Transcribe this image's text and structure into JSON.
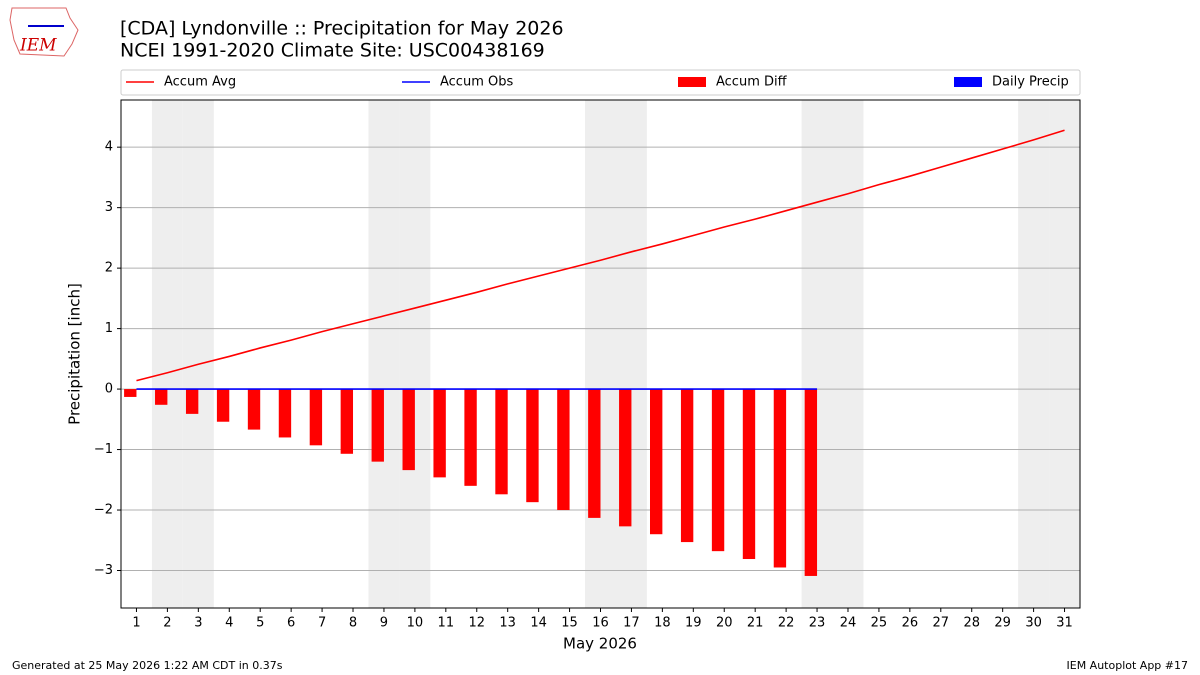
{
  "logo_text": "IEM",
  "footer_left": "Generated at 25 May 2026 1:22 AM CDT in 0.37s",
  "footer_right": "IEM Autoplot App #17",
  "chart_data": {
    "type": "combo",
    "title": "[CDA] Lyndonville :: Precipitation for May 2026",
    "subtitle": "NCEI 1991-2020 Climate Site: USC00438169",
    "x_label": "May 2026",
    "y_label": "Precipitation [inch]",
    "x": [
      1,
      2,
      3,
      4,
      5,
      6,
      7,
      8,
      9,
      10,
      11,
      12,
      13,
      14,
      15,
      16,
      17,
      18,
      19,
      20,
      21,
      22,
      23,
      24,
      25,
      26,
      27,
      28,
      29,
      30,
      31
    ],
    "xlim": [
      0.5,
      31.5
    ],
    "xticks": [
      1,
      2,
      3,
      4,
      5,
      6,
      7,
      8,
      9,
      10,
      11,
      12,
      13,
      14,
      15,
      16,
      17,
      18,
      19,
      20,
      21,
      22,
      23,
      24,
      25,
      26,
      27,
      28,
      29,
      30,
      31
    ],
    "ylim": [
      -3.62,
      4.78
    ],
    "yticks": [
      {
        "value": -3,
        "label": "−3"
      },
      {
        "value": -2,
        "label": "−2"
      },
      {
        "value": -1,
        "label": "−1"
      },
      0,
      1,
      2,
      3,
      4
    ],
    "grid": true,
    "shaded_days": [
      2,
      3,
      9,
      10,
      16,
      17,
      23,
      24,
      30,
      31
    ],
    "shade_color": "#eeeeee",
    "series": [
      {
        "name": "Accum Avg",
        "type": "line",
        "color": "#ff0000",
        "values": [
          0.14,
          0.27,
          0.41,
          0.54,
          0.68,
          0.81,
          0.95,
          1.08,
          1.21,
          1.34,
          1.47,
          1.6,
          1.74,
          1.87,
          2.0,
          2.13,
          2.27,
          2.4,
          2.54,
          2.68,
          2.81,
          2.95,
          3.09,
          3.23,
          3.38,
          3.52,
          3.67,
          3.82,
          3.97,
          4.12,
          4.28
        ]
      },
      {
        "name": "Accum Obs",
        "type": "line",
        "color": "#0000ff",
        "values": [
          0,
          0,
          0,
          0,
          0,
          0,
          0,
          0,
          0,
          0,
          0,
          0,
          0,
          0,
          0,
          0,
          0,
          0,
          0,
          0,
          0,
          0,
          0,
          null,
          null,
          null,
          null,
          null,
          null,
          null,
          null
        ]
      },
      {
        "name": "Accum Diff",
        "type": "bar",
        "color": "#ff0000",
        "values": [
          -0.13,
          -0.26,
          -0.41,
          -0.54,
          -0.67,
          -0.8,
          -0.93,
          -1.07,
          -1.2,
          -1.34,
          -1.46,
          -1.6,
          -1.74,
          -1.87,
          -2.0,
          -2.13,
          -2.27,
          -2.4,
          -2.53,
          -2.68,
          -2.81,
          -2.95,
          -3.09,
          null,
          null,
          null,
          null,
          null,
          null,
          null,
          null
        ]
      },
      {
        "name": "Daily Precip",
        "type": "bar",
        "color": "#0000ff",
        "values": [
          0,
          0,
          0,
          0,
          0,
          0,
          0,
          0,
          0,
          0,
          0,
          0,
          0,
          0,
          0,
          0,
          0,
          0,
          0,
          0,
          0,
          0,
          0,
          null,
          null,
          null,
          null,
          null,
          null,
          null,
          null
        ]
      }
    ]
  }
}
